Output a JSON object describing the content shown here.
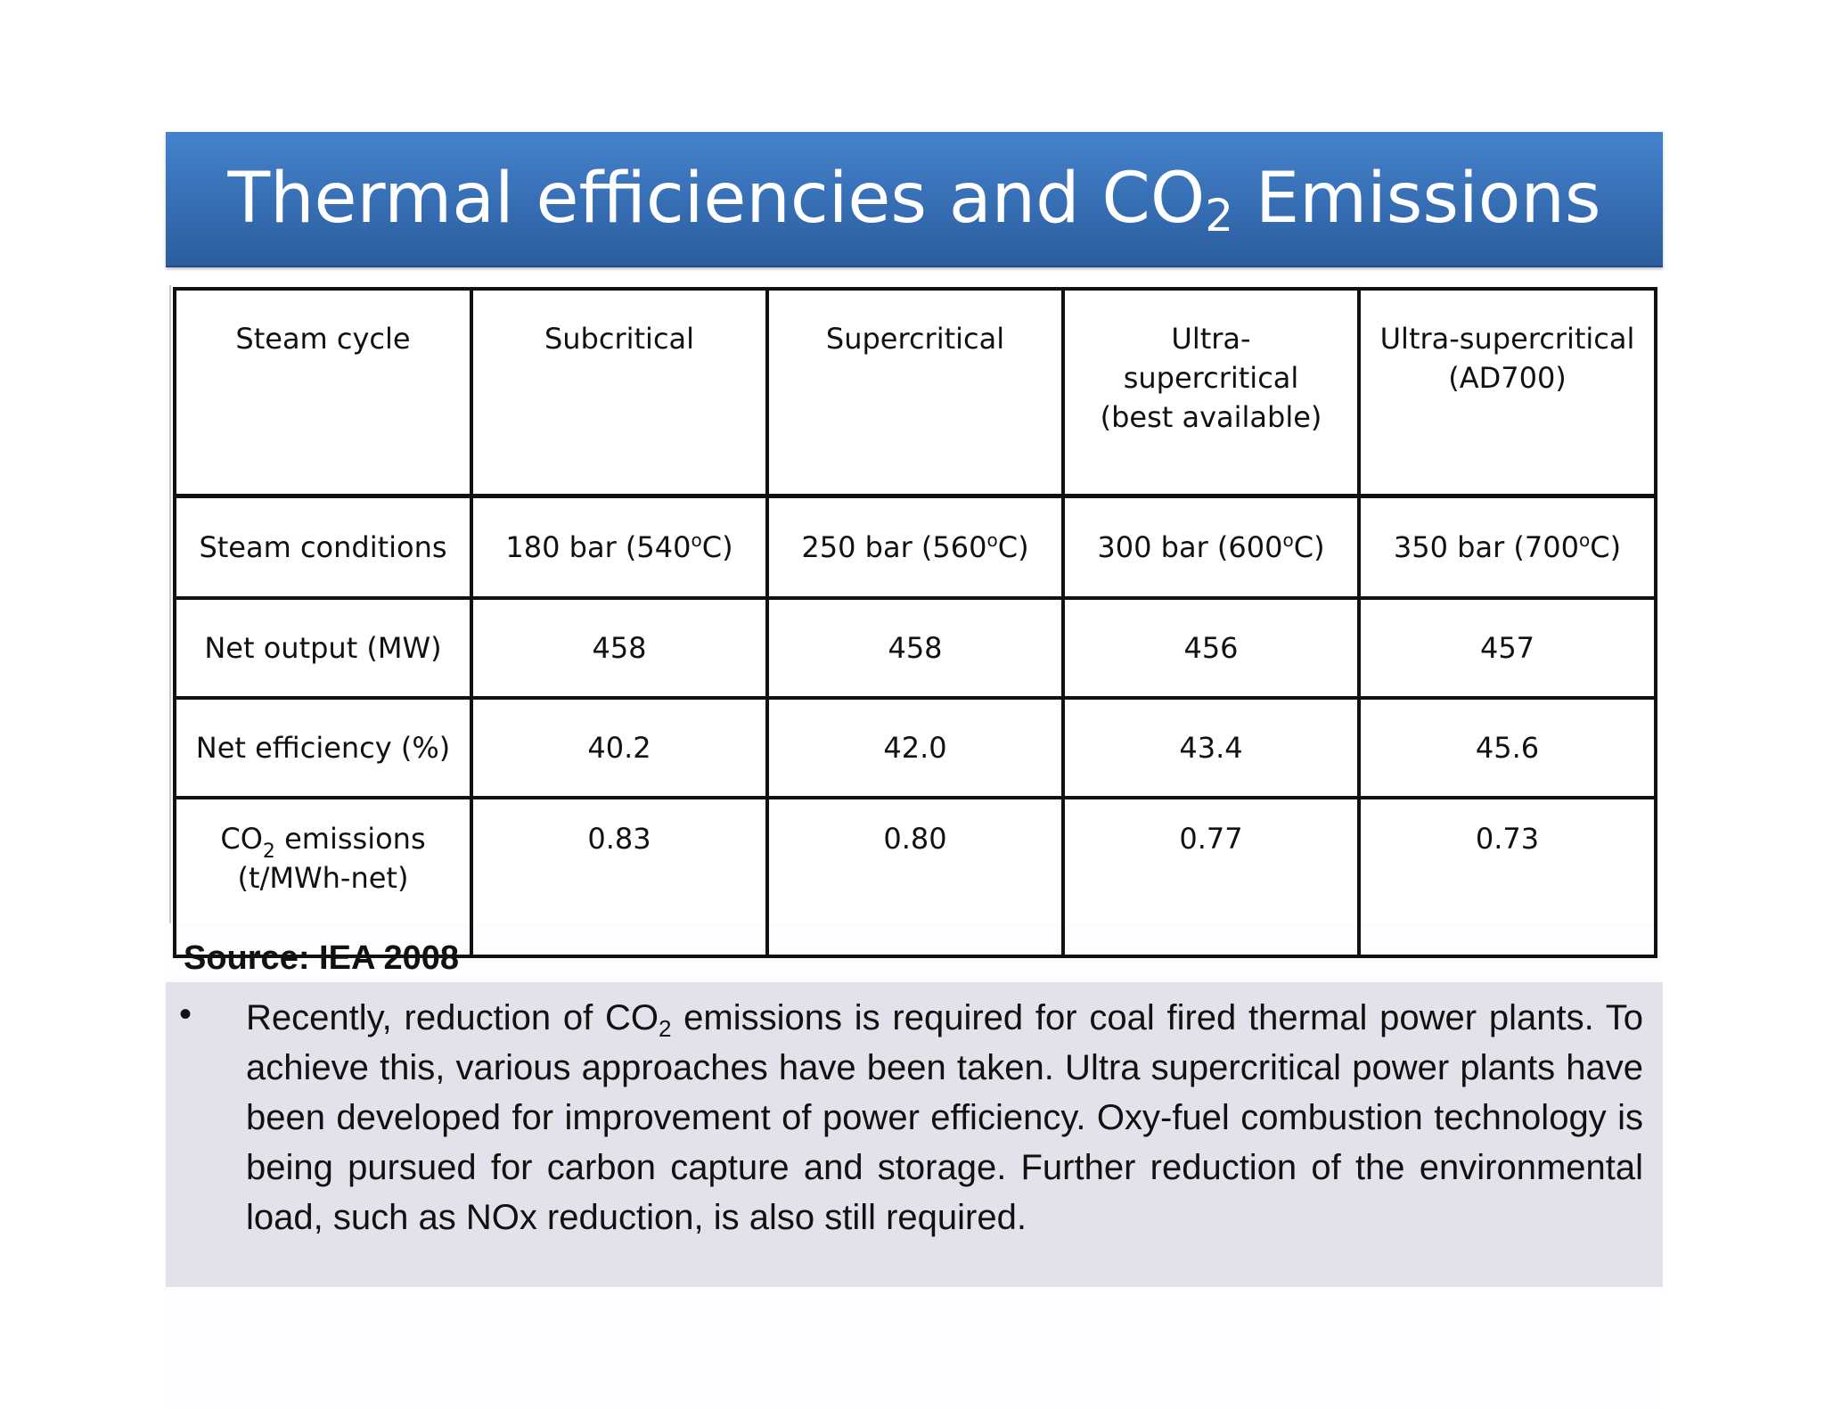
{
  "title": {
    "prefix": "Thermal efficiencies and CO",
    "subscript": "2",
    "suffix": " Emissions"
  },
  "table": {
    "header": {
      "label": "Steam cycle",
      "columns": [
        "Subcritical",
        "Supercritical",
        "Ultra-supercritical (best available)",
        "Ultra-supercritical (AD700)"
      ]
    },
    "conditions": {
      "label": "Steam conditions",
      "values": [
        {
          "text": "180 bar (540",
          "unit": "C)"
        },
        {
          "text": "250 bar (560",
          "unit": "C)"
        },
        {
          "text": "300 bar (600",
          "unit": "C)"
        },
        {
          "text": "350 bar (700",
          "unit": "C)"
        }
      ],
      "degree_symbol": "o"
    },
    "net_output": {
      "label": "Net output (MW)",
      "values": [
        "458",
        "458",
        "456",
        "457"
      ]
    },
    "net_efficiency": {
      "label": "Net efficiency (%)",
      "values": [
        "40.2",
        "42.0",
        "43.4",
        "45.6"
      ]
    },
    "co2": {
      "label_prefix": "CO",
      "label_sub": "2",
      "label_suffix": " emissions",
      "label_unit": "(t/MWh-net)",
      "values": [
        "0.83",
        "0.80",
        "0.77",
        "0.73"
      ]
    }
  },
  "source": "Source: IEA 2008",
  "bullet": {
    "symbol": "•",
    "text_before_sub": "Recently, reduction of CO",
    "sub": "2",
    "text_after_sub": " emissions is required for coal fired thermal power plants. To achieve this, various approaches have been taken. Ultra supercritical power plants have been developed for improvement of power efficiency. Oxy-fuel combustion technology is being pursued for carbon capture and storage. Further reduction of the environmental load, such as NOx reduction, is also still required."
  }
}
